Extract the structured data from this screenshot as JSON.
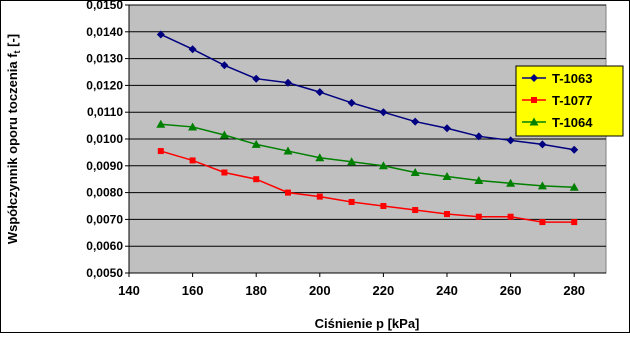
{
  "chart_data": {
    "type": "line",
    "xlabel": "Ciśnienie p [kPa]",
    "ylabel": "Współczynnik oporu toczenia f",
    "ylabel_sub": "t",
    "ylabel_unit": " [-]",
    "xlim": [
      140,
      290
    ],
    "ylim": [
      0.005,
      0.015
    ],
    "x_ticks": [
      "140",
      "160",
      "180",
      "200",
      "220",
      "240",
      "260",
      "280"
    ],
    "y_ticks": [
      "0,0050",
      "0,0060",
      "0,0070",
      "0,0080",
      "0,0090",
      "0,0100",
      "0,0110",
      "0,0120",
      "0,0130",
      "0,0140",
      "0,0150"
    ],
    "grid": true,
    "legend_position": "right",
    "plot_background": "#c0c0c0",
    "x": [
      150,
      160,
      170,
      180,
      190,
      200,
      210,
      220,
      230,
      240,
      250,
      260,
      270,
      280
    ],
    "series": [
      {
        "name": "T-1063",
        "color": "#000080",
        "marker": "diamond",
        "values": [
          0.0139,
          0.01335,
          0.01275,
          0.01225,
          0.0121,
          0.01175,
          0.01135,
          0.011,
          0.01065,
          0.0104,
          0.0101,
          0.00995,
          0.0098,
          0.0096
        ]
      },
      {
        "name": "T-1077",
        "color": "#ff0000",
        "marker": "square",
        "values": [
          0.00955,
          0.0092,
          0.00875,
          0.0085,
          0.008,
          0.00785,
          0.00765,
          0.0075,
          0.00735,
          0.0072,
          0.0071,
          0.0071,
          0.0069,
          0.0069
        ]
      },
      {
        "name": "T-1064",
        "color": "#008000",
        "marker": "triangle",
        "values": [
          0.01055,
          0.01045,
          0.01015,
          0.0098,
          0.00955,
          0.0093,
          0.00915,
          0.009,
          0.00875,
          0.0086,
          0.00845,
          0.00835,
          0.00825,
          0.0082
        ]
      }
    ]
  }
}
